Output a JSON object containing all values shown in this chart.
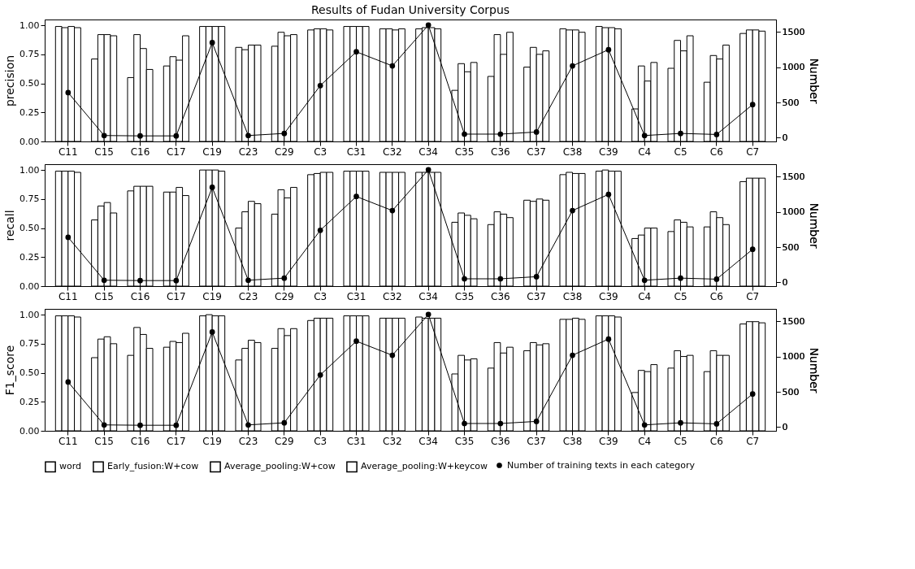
{
  "chart_data": [
    {
      "type": "bar",
      "title": "Results of Fudan University Corpus",
      "ylabel": "precision",
      "y2label": "Number",
      "grid": false,
      "legend": "bottom",
      "categories": [
        "C11",
        "C15",
        "C16",
        "C17",
        "C19",
        "C23",
        "C29",
        "C3",
        "C31",
        "C32",
        "C34",
        "C35",
        "C36",
        "C37",
        "C38",
        "C39",
        "C4",
        "C5",
        "C6",
        "C7"
      ],
      "ylim": [
        0,
        1.05
      ],
      "yticks": [
        {
          "value": 0,
          "label": "0.00"
        },
        {
          "value": 0.25,
          "label": "0.25"
        },
        {
          "value": 0.5,
          "label": "0.50"
        },
        {
          "value": 0.75,
          "label": "0.75"
        },
        {
          "value": 1,
          "label": "1.00"
        }
      ],
      "y2lim": [
        -54,
        1679
      ],
      "y2ticks": [
        0,
        500,
        1000,
        1500
      ],
      "series": [
        {
          "name": "word",
          "color": "#ffffff",
          "values": [
            0.99,
            0.71,
            0.55,
            0.65,
            0.99,
            0.81,
            0.82,
            0.96,
            0.99,
            0.97,
            0.97,
            0.44,
            0.56,
            0.64,
            0.97,
            0.99,
            0.28,
            0.63,
            0.51,
            0.93
          ]
        },
        {
          "name": "Early_fusion:W+cow",
          "color": "#ffffff",
          "values": [
            0.98,
            0.92,
            0.92,
            0.73,
            0.99,
            0.79,
            0.94,
            0.97,
            0.99,
            0.97,
            0.98,
            0.67,
            0.92,
            0.81,
            0.96,
            0.98,
            0.65,
            0.87,
            0.74,
            0.96
          ]
        },
        {
          "name": "Average_pooling:W+cow",
          "color": "#ffffff",
          "values": [
            0.99,
            0.92,
            0.8,
            0.7,
            0.99,
            0.83,
            0.91,
            0.97,
            0.99,
            0.96,
            0.98,
            0.6,
            0.75,
            0.75,
            0.96,
            0.98,
            0.52,
            0.78,
            0.71,
            0.96
          ]
        },
        {
          "name": "Average_pooling:W+keycow",
          "color": "#ffffff",
          "values": [
            0.98,
            0.91,
            0.62,
            0.91,
            0.99,
            0.83,
            0.92,
            0.96,
            0.99,
            0.97,
            0.97,
            0.68,
            0.94,
            0.78,
            0.94,
            0.97,
            0.68,
            0.91,
            0.83,
            0.95
          ]
        },
        {
          "name": "Number of training texts in each category",
          "type": "line",
          "axis": "y2",
          "marker": "circle",
          "color": "#000000",
          "values": [
            640,
            30,
            25,
            25,
            1350,
            30,
            60,
            740,
            1220,
            1020,
            1600,
            50,
            50,
            80,
            1020,
            1250,
            30,
            60,
            45,
            470
          ]
        }
      ]
    },
    {
      "type": "bar",
      "ylabel": "recall",
      "y2label": "Number",
      "grid": false,
      "legend": "bottom",
      "categories": [
        "C11",
        "C15",
        "C16",
        "C17",
        "C19",
        "C23",
        "C29",
        "C3",
        "C31",
        "C32",
        "C34",
        "C35",
        "C36",
        "C37",
        "C38",
        "C39",
        "C4",
        "C5",
        "C6",
        "C7"
      ],
      "ylim": [
        0,
        1.05
      ],
      "yticks": [
        {
          "value": 0,
          "label": "0.00"
        },
        {
          "value": 0.25,
          "label": "0.25"
        },
        {
          "value": 0.5,
          "label": "0.50"
        },
        {
          "value": 0.75,
          "label": "0.75"
        },
        {
          "value": 1,
          "label": "1.00"
        }
      ],
      "y2lim": [
        -54,
        1679
      ],
      "y2ticks": [
        0,
        500,
        1000,
        1500
      ],
      "series": [
        {
          "name": "word",
          "color": "#ffffff",
          "values": [
            0.99,
            0.57,
            0.82,
            0.81,
            1.0,
            0.5,
            0.62,
            0.96,
            0.99,
            0.98,
            0.98,
            0.55,
            0.53,
            0.74,
            0.96,
            0.99,
            0.41,
            0.47,
            0.51,
            0.9
          ]
        },
        {
          "name": "Early_fusion:W+cow",
          "color": "#ffffff",
          "values": [
            0.99,
            0.69,
            0.86,
            0.81,
            1.0,
            0.64,
            0.83,
            0.97,
            0.99,
            0.98,
            0.98,
            0.63,
            0.64,
            0.73,
            0.98,
            1.0,
            0.44,
            0.57,
            0.64,
            0.93
          ]
        },
        {
          "name": "Average_pooling:W+cow",
          "color": "#ffffff",
          "values": [
            0.99,
            0.72,
            0.86,
            0.85,
            1.0,
            0.73,
            0.76,
            0.98,
            0.99,
            0.98,
            0.98,
            0.61,
            0.62,
            0.75,
            0.97,
            0.99,
            0.5,
            0.55,
            0.59,
            0.93
          ]
        },
        {
          "name": "Average_pooling:W+keycow",
          "color": "#ffffff",
          "values": [
            0.98,
            0.63,
            0.86,
            0.78,
            0.99,
            0.71,
            0.85,
            0.98,
            0.99,
            0.98,
            0.98,
            0.58,
            0.59,
            0.74,
            0.97,
            0.99,
            0.5,
            0.51,
            0.53,
            0.93
          ]
        },
        {
          "name": "Number of training texts in each category",
          "type": "line",
          "axis": "y2",
          "marker": "circle",
          "color": "#000000",
          "values": [
            640,
            30,
            25,
            25,
            1350,
            30,
            60,
            740,
            1220,
            1020,
            1600,
            50,
            50,
            80,
            1020,
            1250,
            30,
            60,
            45,
            470
          ]
        }
      ]
    },
    {
      "type": "bar",
      "ylabel": "F1_score",
      "y2label": "Number",
      "grid": false,
      "legend": "bottom",
      "categories": [
        "C11",
        "C15",
        "C16",
        "C17",
        "C19",
        "C23",
        "C29",
        "C3",
        "C31",
        "C32",
        "C34",
        "C35",
        "C36",
        "C37",
        "C38",
        "C39",
        "C4",
        "C5",
        "C6",
        "C7"
      ],
      "ylim": [
        0,
        1.05
      ],
      "yticks": [
        {
          "value": 0,
          "label": "0.00"
        },
        {
          "value": 0.25,
          "label": "0.25"
        },
        {
          "value": 0.5,
          "label": "0.50"
        },
        {
          "value": 0.75,
          "label": "0.75"
        },
        {
          "value": 1,
          "label": "1.00"
        }
      ],
      "y2lim": [
        -54,
        1679
      ],
      "y2ticks": [
        0,
        500,
        1000,
        1500
      ],
      "series": [
        {
          "name": "word",
          "color": "#ffffff",
          "values": [
            0.99,
            0.63,
            0.65,
            0.72,
            0.99,
            0.61,
            0.71,
            0.95,
            0.99,
            0.97,
            0.98,
            0.49,
            0.54,
            0.69,
            0.96,
            0.99,
            0.33,
            0.54,
            0.51,
            0.92
          ]
        },
        {
          "name": "Early_fusion:W+cow",
          "color": "#ffffff",
          "values": [
            0.99,
            0.79,
            0.89,
            0.77,
            1.0,
            0.71,
            0.88,
            0.97,
            0.99,
            0.97,
            0.97,
            0.65,
            0.76,
            0.76,
            0.96,
            0.99,
            0.52,
            0.69,
            0.69,
            0.94
          ]
        },
        {
          "name": "Average_pooling:W+cow",
          "color": "#ffffff",
          "values": [
            0.99,
            0.81,
            0.83,
            0.76,
            0.99,
            0.78,
            0.82,
            0.97,
            0.99,
            0.97,
            0.97,
            0.61,
            0.67,
            0.74,
            0.97,
            0.99,
            0.51,
            0.64,
            0.65,
            0.94
          ]
        },
        {
          "name": "Average_pooling:W+keycow",
          "color": "#ffffff",
          "values": [
            0.98,
            0.75,
            0.71,
            0.84,
            0.99,
            0.76,
            0.88,
            0.97,
            0.99,
            0.97,
            0.97,
            0.62,
            0.72,
            0.75,
            0.96,
            0.98,
            0.57,
            0.65,
            0.65,
            0.93
          ]
        },
        {
          "name": "Number of training texts in each category",
          "type": "line",
          "axis": "y2",
          "marker": "circle",
          "color": "#000000",
          "values": [
            640,
            30,
            25,
            25,
            1350,
            30,
            60,
            740,
            1220,
            1020,
            1600,
            50,
            50,
            80,
            1020,
            1250,
            30,
            60,
            45,
            470
          ]
        }
      ]
    }
  ]
}
